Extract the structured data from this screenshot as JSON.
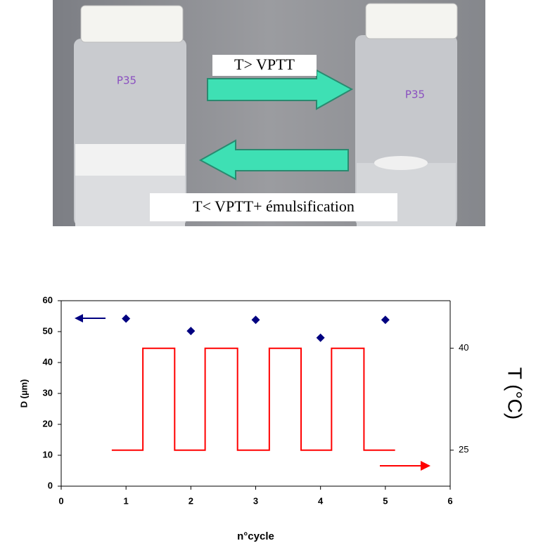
{
  "photo": {
    "jar_labels": [
      "P35",
      "P35"
    ],
    "arrow_top": "T> VPTT",
    "arrow_bottom": "T< VPTT+ émulsification"
  },
  "chart_data": {
    "type": "scatter",
    "xlabel": "n°cycle",
    "ylabel": "D (µm)",
    "y2label": "T (°C)",
    "xlim": [
      0,
      6
    ],
    "xticks": [
      0,
      1,
      2,
      3,
      4,
      5,
      6
    ],
    "ylim": [
      0,
      60
    ],
    "yticks": [
      0,
      10,
      20,
      30,
      40,
      50,
      60
    ],
    "y2lim": [
      19.7,
      47
    ],
    "y2ticks": [
      25,
      40
    ],
    "series": [
      {
        "color": "#000080",
        "x": [
          1,
          2,
          3,
          4,
          5
        ],
        "values": [
          54.2,
          50.2,
          53.8,
          48.0,
          53.8
        ]
      },
      {
        "type": "line",
        "axis": "y2",
        "color": "#ff0000",
        "x": [
          0.78,
          1.26,
          1.26,
          1.75,
          1.75,
          2.22,
          2.22,
          2.72,
          2.72,
          3.21,
          3.21,
          3.7,
          3.7,
          4.17,
          4.17,
          4.67,
          4.67,
          5.15
        ],
        "values": [
          25,
          25,
          40,
          40,
          25,
          25,
          40,
          40,
          25,
          25,
          40,
          40,
          25,
          25,
          40,
          40,
          25,
          25
        ]
      }
    ]
  }
}
